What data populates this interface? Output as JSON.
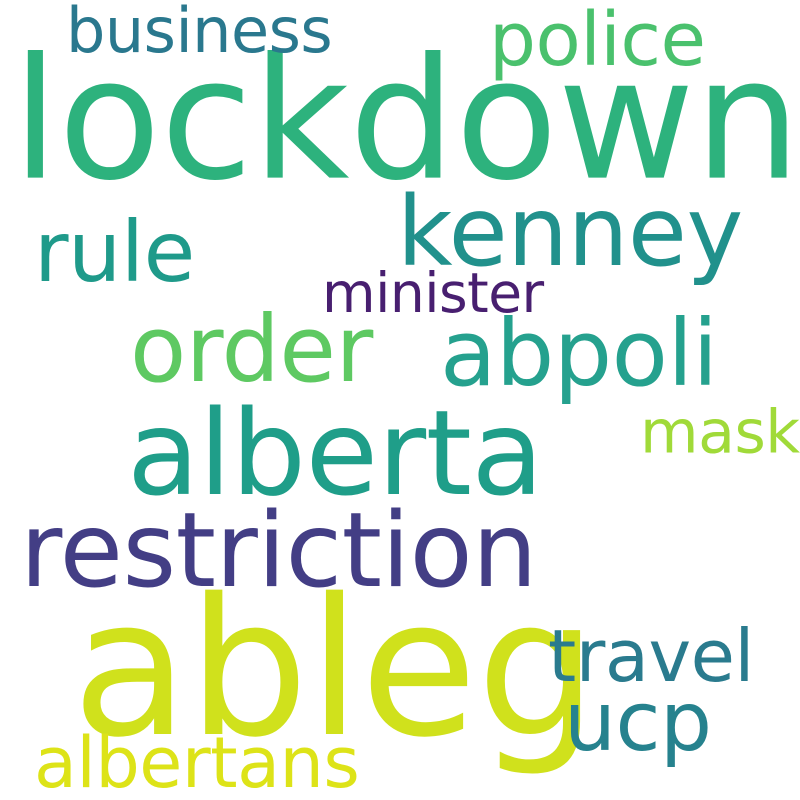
{
  "words": [
    {
      "id": "lockdown",
      "text": "lockdown",
      "color": "#2db27d"
    },
    {
      "id": "ableg",
      "text": "ableg",
      "color": "#d0e11c"
    },
    {
      "id": "alberta",
      "text": "alberta",
      "color": "#1f9e89"
    },
    {
      "id": "restriction",
      "text": "restriction",
      "color": "#433e85"
    },
    {
      "id": "kenney",
      "text": "kenney",
      "color": "#21918c"
    },
    {
      "id": "order",
      "text": "order",
      "color": "#5ec962"
    },
    {
      "id": "abpoli",
      "text": "abpoli",
      "color": "#25a18e"
    },
    {
      "id": "rule",
      "text": "rule",
      "color": "#1f9a8a"
    },
    {
      "id": "police",
      "text": "police",
      "color": "#4ac16d"
    },
    {
      "id": "business",
      "text": "business",
      "color": "#2a788e"
    },
    {
      "id": "ucp",
      "text": "ucp",
      "color": "#26828e"
    },
    {
      "id": "travel",
      "text": "travel",
      "color": "#2a7b8e"
    },
    {
      "id": "albertans",
      "text": "albertans",
      "color": "#dde318"
    },
    {
      "id": "mask",
      "text": "mask",
      "color": "#a0da39"
    },
    {
      "id": "minister",
      "text": "minister",
      "color": "#481f70"
    }
  ]
}
